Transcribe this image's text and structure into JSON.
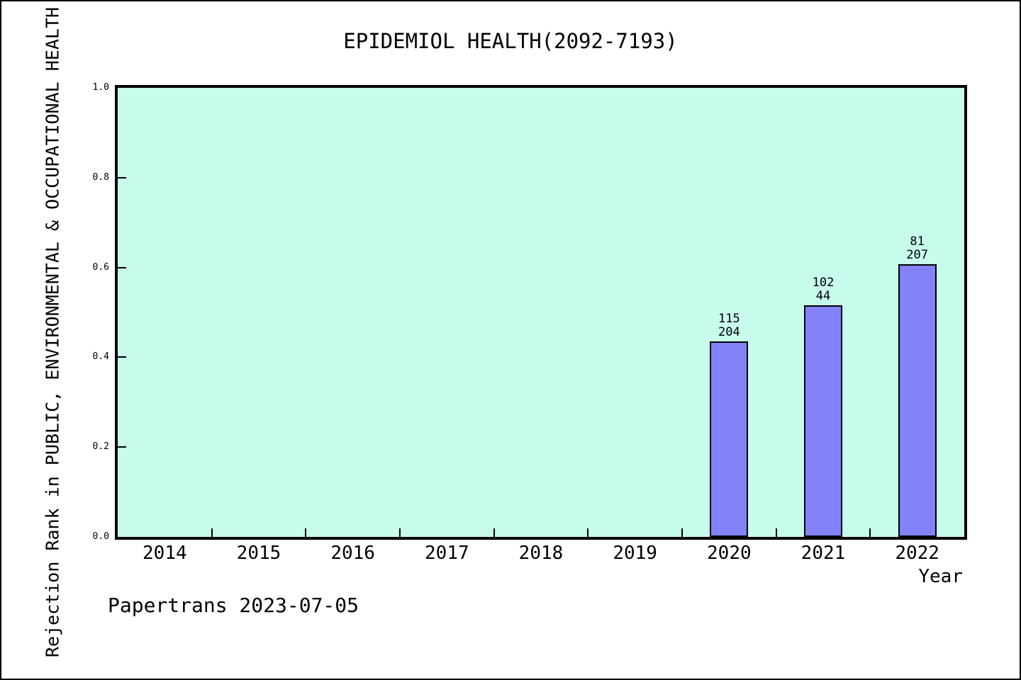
{
  "footer": {
    "text": "Papertrans 2023-07-05"
  },
  "chart_data": {
    "type": "bar",
    "title": "EPIDEMIOL HEALTH(2092-7193)",
    "xlabel": "Year",
    "ylabel": "Rejection Rank in PUBLIC, ENVIRONMENTAL & OCCUPATIONAL HEALTH",
    "categories": [
      "2014",
      "2015",
      "2016",
      "2017",
      "2018",
      "2019",
      "2020",
      "2021",
      "2022"
    ],
    "ytick_labels": [
      "0.0",
      "0.2",
      "0.4",
      "0.6",
      "0.8",
      "1.0"
    ],
    "ylim": [
      0.0,
      1.0
    ],
    "grid": false,
    "legend": null,
    "bars": [
      {
        "category": "2020",
        "value": 0.435,
        "annotation_lines": [
          "115",
          "204"
        ]
      },
      {
        "category": "2021",
        "value": 0.516,
        "annotation_lines": [
          "102",
          "44"
        ]
      },
      {
        "category": "2022",
        "value": 0.607,
        "annotation_lines": [
          "81",
          "207"
        ]
      }
    ],
    "colors": {
      "plot_bg": "#c7fbec",
      "bar_fill": "#8182f7",
      "bar_border": "#000000",
      "axis": "#000000",
      "text": "#000000"
    }
  }
}
